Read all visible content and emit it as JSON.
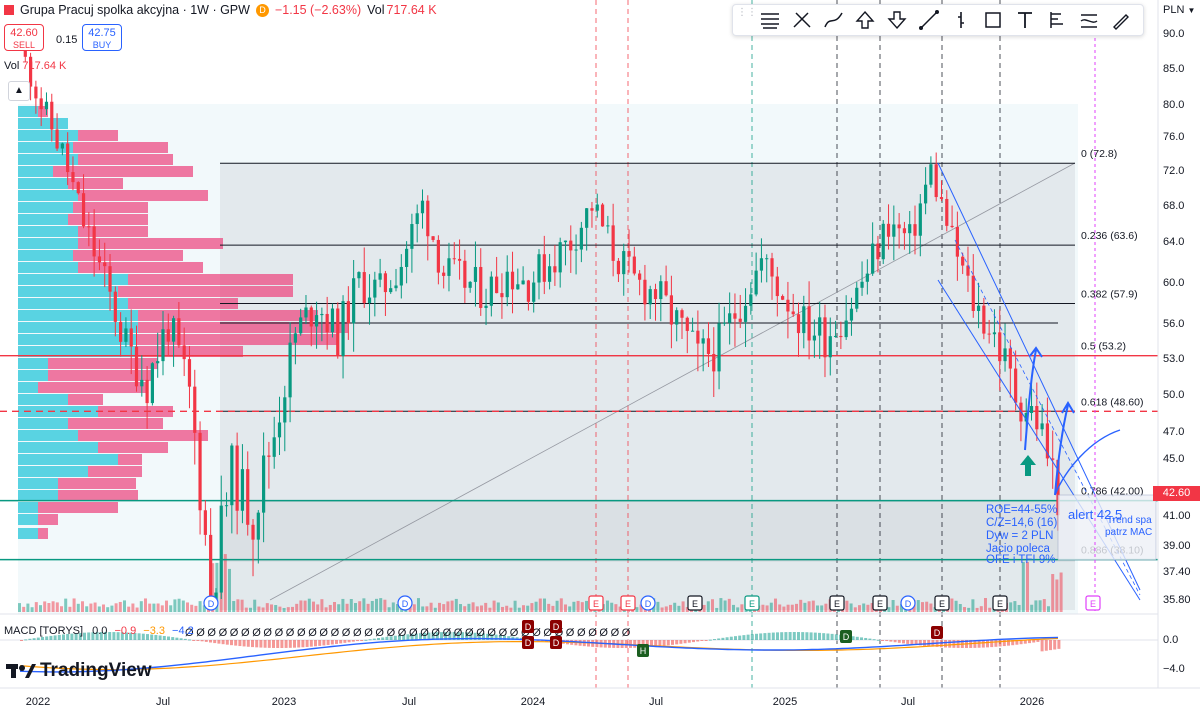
{
  "header": {
    "title": "Grupa Pracuj spolka akcyjna · 1W · GPW",
    "exchange_badge": "D",
    "change": "−1.15 (−2.63%)",
    "vol_label": "Vol",
    "vol_value": "717.64 K"
  },
  "trade": {
    "sell_price": "42.60",
    "sell_label": "SELL",
    "spread": "0.15",
    "buy_price": "42.75",
    "buy_label": "BUY"
  },
  "volume_pane": {
    "label": "Vol",
    "value": "717.64 K"
  },
  "toolbar": {
    "tools": [
      "menu-lines-icon",
      "cross-tool-icon",
      "path-tool-icon",
      "arrow-up-icon",
      "arrow-down-icon",
      "line-tool-icon",
      "bar-tool-icon",
      "rectangle-icon",
      "text-tool-icon",
      "fib-tool-icon",
      "brush-icon",
      "pencil-icon"
    ]
  },
  "price_axis": {
    "currency": "PLN",
    "last_price": "42.60",
    "last_color": "#f23645"
  },
  "macd": {
    "label": "MACD [TORYS]",
    "values": [
      "0.0",
      "−0.9",
      "−3.3",
      "−4.2"
    ],
    "value_colors": [
      "#131722",
      "#f23645",
      "#ff9800",
      "#2962ff"
    ]
  },
  "brand": {
    "name": "TradingView"
  },
  "chart_data": {
    "type": "candlestick",
    "interval": "1W",
    "price_ticks": [
      "90.0",
      "85.0",
      "80.0",
      "76.0",
      "72.0",
      "68.0",
      "64.0",
      "60.0",
      "56.0",
      "53.0",
      "50.0",
      "47.0",
      "45.0",
      "42.60",
      "41.00",
      "39.00",
      "37.40",
      "35.80"
    ],
    "x_ticks": [
      "2022",
      "Jul",
      "2023",
      "Jul",
      "2024",
      "Jul",
      "2025",
      "Jul",
      "2026"
    ],
    "macd_ticks": [
      "0.0",
      "−4.0"
    ],
    "fib_levels": [
      {
        "label": "0 (72.8)",
        "value": 72.8
      },
      {
        "label": "0.236 (63.6)",
        "value": 63.6
      },
      {
        "label": "0.382 (57.9)",
        "value": 57.9
      },
      {
        "label": "0.5 (53.2)",
        "value": 53.2
      },
      {
        "label": "0.618 (48.60)",
        "value": 48.6
      },
      {
        "label": "0.786 (42.00)",
        "value": 42.0
      },
      {
        "label": "0.886 (38.10)",
        "value": 38.1
      }
    ],
    "horizontal_lines": [
      {
        "value": 53.2,
        "color": "#f23645",
        "style": "solid"
      },
      {
        "value": 48.6,
        "color": "#f23645",
        "style": "dashed"
      },
      {
        "value": 42.0,
        "color": "#089981",
        "style": "solid"
      },
      {
        "value": 38.1,
        "color": "#089981",
        "style": "solid"
      },
      {
        "value": 56.0,
        "color": "#131722",
        "style": "solid"
      }
    ],
    "annotations": [
      "ROE=44-55%",
      "C/Z=14,6 (16)",
      "Dyw = 2 PLN",
      "Jacio poleca",
      "OFE i TFI 9%",
      "alert 42,5",
      "Trend spa",
      "patrz MAC"
    ],
    "event_markers": [
      "D",
      "D",
      "E",
      "E",
      "D",
      "E",
      "E",
      "E",
      "E",
      "D",
      "E",
      "E",
      "E"
    ],
    "macd_markers": [
      "D",
      "D",
      "D",
      "H",
      "D",
      "D"
    ],
    "price_path": [
      [
        "2022-01",
        88
      ],
      [
        "2022-02",
        80
      ],
      [
        "2022-03",
        74
      ],
      [
        "2022-04",
        66
      ],
      [
        "2022-05",
        60
      ],
      [
        "2022-06",
        54
      ],
      [
        "2022-07",
        51
      ],
      [
        "2022-08",
        56
      ],
      [
        "2022-09",
        50
      ],
      [
        "2022-10",
        36
      ],
      [
        "2022-11",
        44
      ],
      [
        "2022-12",
        41
      ],
      [
        "2023-01",
        47
      ],
      [
        "2023-02",
        55
      ],
      [
        "2023-03",
        58
      ],
      [
        "2023-04",
        55
      ],
      [
        "2023-05",
        60
      ],
      [
        "2023-06",
        59
      ],
      [
        "2023-07",
        62
      ],
      [
        "2023-08",
        68
      ],
      [
        "2023-09",
        61
      ],
      [
        "2023-10",
        60
      ],
      [
        "2023-11",
        59
      ],
      [
        "2023-12",
        61
      ],
      [
        "2024-01",
        60
      ],
      [
        "2024-02",
        62
      ],
      [
        "2024-03",
        64
      ],
      [
        "2024-04",
        68
      ],
      [
        "2024-05",
        63
      ],
      [
        "2024-06",
        60
      ],
      [
        "2024-07",
        59
      ],
      [
        "2024-08",
        56
      ],
      [
        "2024-09",
        53
      ],
      [
        "2024-10",
        54
      ],
      [
        "2024-11",
        58
      ],
      [
        "2024-12",
        62
      ],
      [
        "2025-01",
        59
      ],
      [
        "2025-02",
        56
      ],
      [
        "2025-03",
        55
      ],
      [
        "2025-04",
        57
      ],
      [
        "2025-05",
        61
      ],
      [
        "2025-06",
        66
      ],
      [
        "2025-07",
        64
      ],
      [
        "2025-08",
        72
      ],
      [
        "2025-09",
        64
      ],
      [
        "2025-10",
        58
      ],
      [
        "2025-11",
        55
      ],
      [
        "2025-12",
        50
      ],
      [
        "2026-01",
        48
      ],
      [
        "2026-02",
        42.6
      ]
    ]
  }
}
